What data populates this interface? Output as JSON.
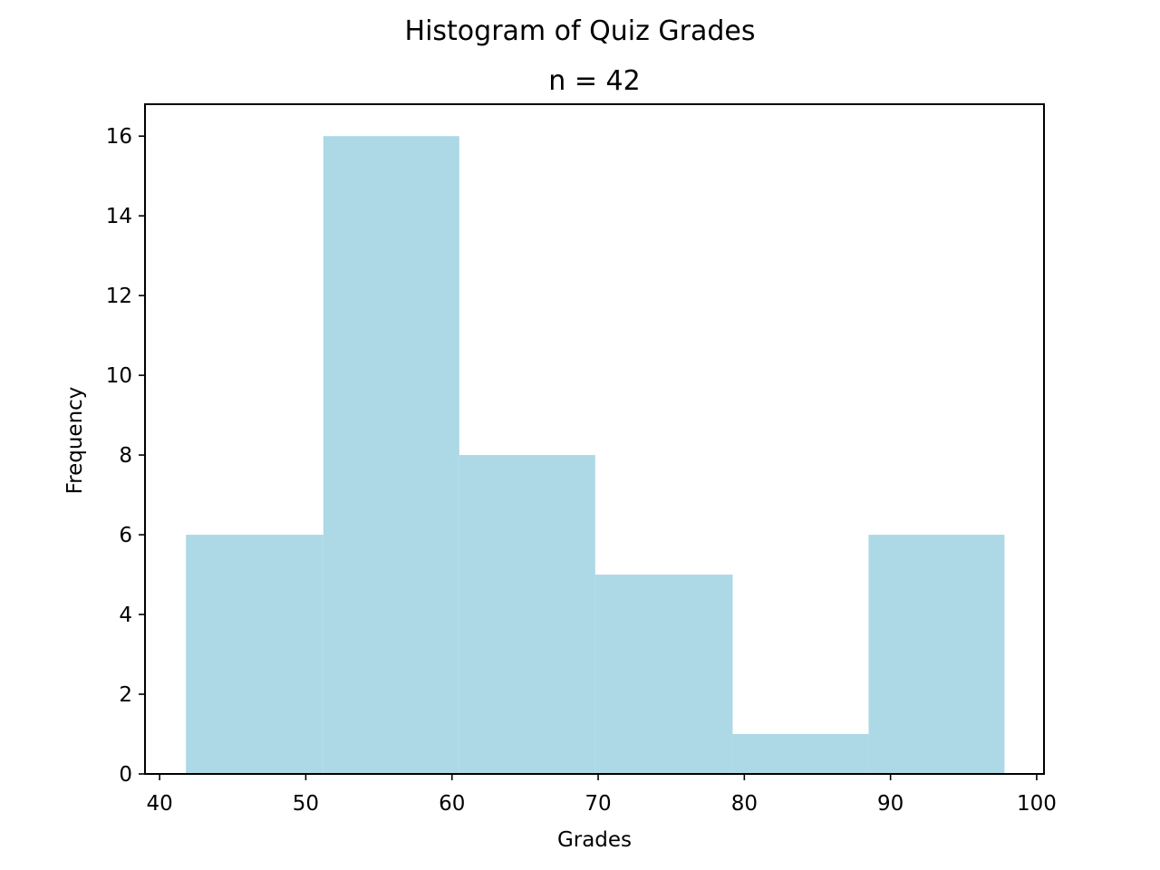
{
  "chart_data": {
    "type": "histogram",
    "title": "Histogram of Quiz Grades",
    "subtitle": "n = 42",
    "xlabel": "Grades",
    "ylabel": "Frequency",
    "xlim": [
      39,
      100.5
    ],
    "ylim": [
      0,
      16.8
    ],
    "xticks": [
      40,
      50,
      60,
      70,
      80,
      90,
      100
    ],
    "yticks": [
      0,
      2,
      4,
      6,
      8,
      10,
      12,
      14,
      16
    ],
    "bins": [
      {
        "start": 41.8,
        "end": 51.2,
        "count": 6
      },
      {
        "start": 51.2,
        "end": 60.5,
        "count": 16
      },
      {
        "start": 60.5,
        "end": 69.8,
        "count": 8
      },
      {
        "start": 69.8,
        "end": 79.2,
        "count": 5
      },
      {
        "start": 79.2,
        "end": 88.5,
        "count": 1
      },
      {
        "start": 88.5,
        "end": 97.8,
        "count": 6
      }
    ],
    "bar_color": "#add8e6",
    "grid": false,
    "legend": "none"
  }
}
